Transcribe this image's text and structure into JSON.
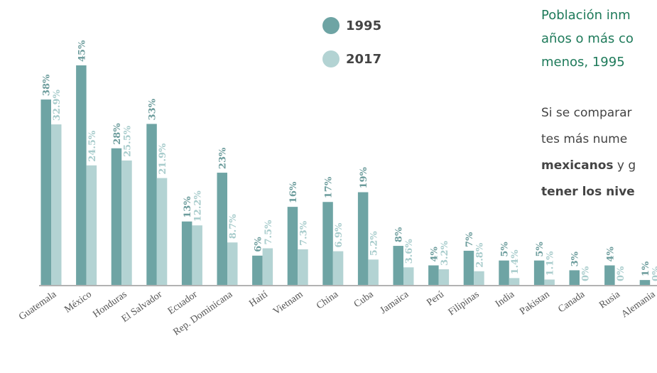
{
  "chart_data": {
    "type": "bar",
    "categories": [
      "Guatemala",
      "México",
      "Honduras",
      "El Salvador",
      "Ecuador",
      "Rep. Dominicana",
      "Haití",
      "Vietnam",
      "China",
      "Cuba",
      "Jamaica",
      "Perú",
      "Filipinas",
      "India",
      "Pakistan",
      "Canada",
      "Rusia",
      "Alemania"
    ],
    "series": [
      {
        "name": "1995",
        "color": "#6ea4a4",
        "label_color": "#6c9c9c",
        "values": [
          38,
          45,
          28,
          33,
          13,
          23,
          6,
          16,
          17,
          19,
          8,
          4,
          7,
          5,
          5,
          3,
          4,
          1
        ],
        "value_labels": [
          "38%",
          "45%",
          "28%",
          "33%",
          "13%",
          "23%",
          "6%",
          "16%",
          "17%",
          "19%",
          "8%",
          "4%",
          "7%",
          "5%",
          "5%",
          "3%",
          "4%",
          "1%"
        ]
      },
      {
        "name": "2017",
        "color": "#b3d3d3",
        "label_color": "#a8cccc",
        "values": [
          32.9,
          24.5,
          25.5,
          21.9,
          12.2,
          8.7,
          7.5,
          7.3,
          6.9,
          5.2,
          3.6,
          3.2,
          2.8,
          1.4,
          1.1,
          0,
          0,
          0
        ],
        "value_labels": [
          "32.9%",
          "24.5%",
          "25.5%",
          "21.9%",
          "12.2%",
          "8.7%",
          "7.5%",
          "7.3%",
          "6.9%",
          "5.2%",
          "3.6%",
          "3.2%",
          "2.8%",
          "1.4%",
          "1.1%",
          "0%",
          "0%",
          "0%"
        ]
      }
    ],
    "ylim": [
      0,
      45
    ],
    "legend": "top"
  },
  "sidebar": {
    "title_lines": [
      "Población inm",
      "años o más co",
      "menos, 1995"
    ],
    "paragraph_lines": [
      [
        {
          "text": "Si se comparar",
          "bold": false
        }
      ],
      [
        {
          "text": "tes más nume",
          "bold": false
        }
      ],
      [
        {
          "text": "mexicanos",
          "bold": true
        },
        {
          "text": " y g",
          "bold": false
        }
      ],
      [
        {
          "text": "tener los nive",
          "bold": true
        }
      ]
    ]
  }
}
